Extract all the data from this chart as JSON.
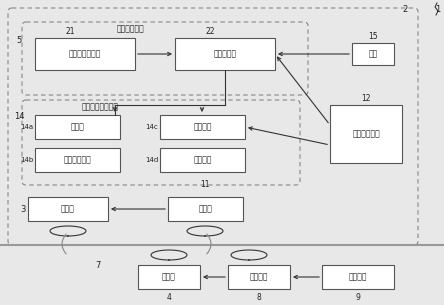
{
  "bg_color": "#e8e8e8",
  "box_fc": "#ffffff",
  "box_ec": "#555555",
  "dash_ec": "#888888",
  "text_color": "#222222",
  "arrow_color": "#333333",
  "fig_w": 4.44,
  "fig_h": 3.05,
  "labels": {
    "title_park": "停车辅助装置",
    "box21": "相对位置获取部",
    "box22": "对位辅助部",
    "box15": "开关",
    "box12": "图像显示装置",
    "title_veh": "车辆信息显示装置",
    "box14a": "仪表盘",
    "box14b": "警告声扬声器",
    "box14c": "左扬声器",
    "box14d": "右扬声器",
    "box3": "蓄电池",
    "box11": "受电部",
    "box4": "供电部",
    "box8": "驱动电路",
    "box9": "控制装置",
    "n1": "1",
    "n2": "2",
    "n3": "3",
    "n4": "4",
    "n5": "5",
    "n7": "7",
    "n8": "8",
    "n9": "9",
    "n11": "11",
    "n12": "12",
    "n14": "14",
    "n14a": "14a",
    "n14b": "14b",
    "n14c": "14c",
    "n14d": "14d",
    "n15": "15",
    "n21": "21",
    "n22": "22"
  }
}
